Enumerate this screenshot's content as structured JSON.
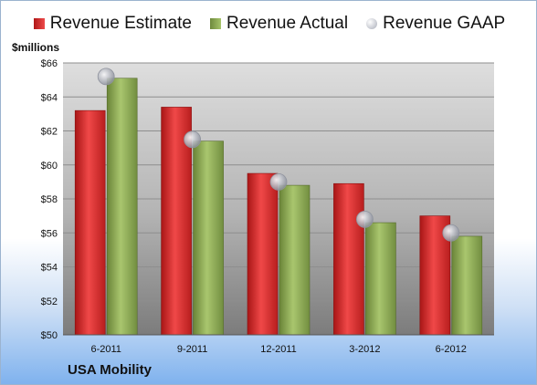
{
  "chart_data": {
    "type": "bar",
    "title": "",
    "ylabel": "$millions",
    "xlabel": "",
    "ylim": [
      50,
      66
    ],
    "y_ticks": [
      "$50",
      "$52",
      "$54",
      "$56",
      "$58",
      "$60",
      "$62",
      "$64",
      "$66"
    ],
    "categories": [
      "6-2011",
      "9-2011",
      "12-2011",
      "3-2012",
      "6-2012"
    ],
    "series": [
      {
        "name": "Revenue Estimate",
        "type": "bar",
        "color": "#d42a2a",
        "values": [
          63.2,
          63.4,
          59.5,
          58.9,
          57.0
        ]
      },
      {
        "name": "Revenue Actual",
        "type": "bar",
        "color": "#8aa652",
        "values": [
          65.1,
          61.4,
          58.8,
          56.6,
          55.8
        ]
      },
      {
        "name": "Revenue GAAP",
        "type": "marker",
        "color": "#b8bcc8",
        "values": [
          65.2,
          61.5,
          59.0,
          56.8,
          56.0
        ]
      }
    ],
    "legend_position": "top-center",
    "grid": true
  },
  "footer": {
    "company": "USA Mobility"
  }
}
